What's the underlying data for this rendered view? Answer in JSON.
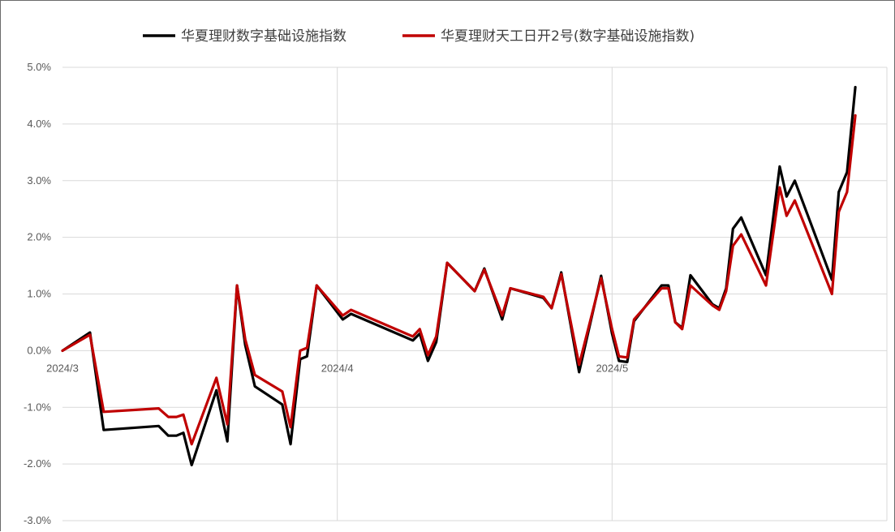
{
  "chart_data": {
    "type": "line",
    "title": "",
    "xlabel": "",
    "ylabel": "",
    "ylim": [
      -3.0,
      5.0
    ],
    "yticks": [
      "5.0%",
      "4.0%",
      "3.0%",
      "2.0%",
      "1.0%",
      "0.0%",
      "-1.0%",
      "-2.0%",
      "-3.0%"
    ],
    "ytick_values": [
      5,
      4,
      3,
      2,
      1,
      0,
      -1,
      -2,
      -3
    ],
    "x_ticks": [
      {
        "label": "2024/3",
        "index": 0
      },
      {
        "label": "2024/4",
        "index": 20
      },
      {
        "label": "2024/5",
        "index": 40
      }
    ],
    "grid": true,
    "legend_position": "top",
    "series": [
      {
        "name": "华夏理财数字基础设施指数",
        "color": "#000000",
        "points": [
          [
            0,
            0.0
          ],
          [
            2,
            0.32
          ],
          [
            3,
            -1.4
          ],
          [
            7,
            -1.33
          ],
          [
            7.7,
            -1.5
          ],
          [
            8.3,
            -1.5
          ],
          [
            8.8,
            -1.45
          ],
          [
            9.4,
            -2.02
          ],
          [
            11.2,
            -0.7
          ],
          [
            12,
            -1.6
          ],
          [
            12.7,
            1.15
          ],
          [
            13.3,
            0.1
          ],
          [
            14,
            -0.63
          ],
          [
            16,
            -0.95
          ],
          [
            16.6,
            -1.65
          ],
          [
            17.3,
            -0.15
          ],
          [
            17.8,
            -0.1
          ],
          [
            18.5,
            1.15
          ],
          [
            20.4,
            0.55
          ],
          [
            21,
            0.65
          ],
          [
            25.5,
            0.18
          ],
          [
            26,
            0.3
          ],
          [
            26.6,
            -0.18
          ],
          [
            27.2,
            0.15
          ],
          [
            28,
            1.55
          ],
          [
            30,
            1.05
          ],
          [
            30.7,
            1.45
          ],
          [
            32,
            0.55
          ],
          [
            32.6,
            1.1
          ],
          [
            35,
            0.93
          ],
          [
            35.6,
            0.75
          ],
          [
            36.3,
            1.38
          ],
          [
            37.6,
            -0.38
          ],
          [
            39.2,
            1.32
          ],
          [
            40,
            0.3
          ],
          [
            40.5,
            -0.18
          ],
          [
            41.1,
            -0.2
          ],
          [
            41.6,
            0.52
          ],
          [
            43.6,
            1.15
          ],
          [
            44.1,
            1.15
          ],
          [
            44.6,
            0.5
          ],
          [
            45.1,
            0.4
          ],
          [
            45.7,
            1.33
          ],
          [
            47.3,
            0.82
          ],
          [
            47.8,
            0.75
          ],
          [
            48.3,
            1.1
          ],
          [
            48.8,
            2.15
          ],
          [
            49.4,
            2.35
          ],
          [
            51.2,
            1.33
          ],
          [
            52.2,
            3.25
          ],
          [
            52.7,
            2.72
          ],
          [
            53.3,
            3.0
          ],
          [
            56,
            1.25
          ],
          [
            56.5,
            2.8
          ],
          [
            57.1,
            3.15
          ],
          [
            57.7,
            4.65
          ]
        ]
      },
      {
        "name": "华夏理财天工日开2号(数字基础设施指数)",
        "color": "#c00000",
        "points": [
          [
            0,
            0.0
          ],
          [
            2,
            0.28
          ],
          [
            3,
            -1.08
          ],
          [
            7,
            -1.02
          ],
          [
            7.7,
            -1.17
          ],
          [
            8.3,
            -1.17
          ],
          [
            8.8,
            -1.13
          ],
          [
            9.4,
            -1.65
          ],
          [
            11.2,
            -0.48
          ],
          [
            12,
            -1.3
          ],
          [
            12.7,
            1.15
          ],
          [
            13.3,
            0.2
          ],
          [
            14,
            -0.43
          ],
          [
            16,
            -0.72
          ],
          [
            16.6,
            -1.35
          ],
          [
            17.3,
            0.0
          ],
          [
            17.8,
            0.05
          ],
          [
            18.5,
            1.15
          ],
          [
            20.4,
            0.62
          ],
          [
            21,
            0.72
          ],
          [
            25.5,
            0.25
          ],
          [
            26,
            0.38
          ],
          [
            26.6,
            -0.08
          ],
          [
            27.2,
            0.25
          ],
          [
            28,
            1.55
          ],
          [
            30,
            1.05
          ],
          [
            30.7,
            1.43
          ],
          [
            32,
            0.62
          ],
          [
            32.6,
            1.1
          ],
          [
            35,
            0.95
          ],
          [
            35.6,
            0.75
          ],
          [
            36.3,
            1.35
          ],
          [
            37.6,
            -0.25
          ],
          [
            39.2,
            1.28
          ],
          [
            40,
            0.38
          ],
          [
            40.5,
            -0.1
          ],
          [
            41.1,
            -0.12
          ],
          [
            41.6,
            0.55
          ],
          [
            43.6,
            1.1
          ],
          [
            44.1,
            1.1
          ],
          [
            44.6,
            0.5
          ],
          [
            45.1,
            0.38
          ],
          [
            45.7,
            1.15
          ],
          [
            47.3,
            0.8
          ],
          [
            47.8,
            0.72
          ],
          [
            48.3,
            1.05
          ],
          [
            48.8,
            1.85
          ],
          [
            49.4,
            2.05
          ],
          [
            51.2,
            1.15
          ],
          [
            52.2,
            2.88
          ],
          [
            52.7,
            2.38
          ],
          [
            53.3,
            2.65
          ],
          [
            56,
            1.0
          ],
          [
            56.5,
            2.45
          ],
          [
            57.1,
            2.8
          ],
          [
            57.7,
            4.15
          ]
        ]
      }
    ]
  }
}
